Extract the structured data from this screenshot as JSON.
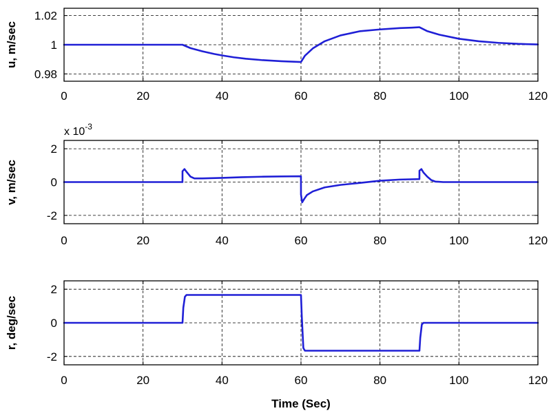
{
  "colors": {
    "series": "#1f1fd6",
    "axes": "#000000",
    "background": "#ffffff"
  },
  "chart_data": [
    {
      "type": "line",
      "title": "",
      "xlabel": "",
      "ylabel": "u, m/sec",
      "multiplier": "",
      "xlim": [
        0,
        120
      ],
      "ylim": [
        0.975,
        1.025
      ],
      "xticks": [
        0,
        20,
        40,
        60,
        80,
        100,
        120
      ],
      "xtick_labels": [
        "0",
        "20",
        "40",
        "60",
        "80",
        "100",
        "120"
      ],
      "yticks": [
        0.98,
        1,
        1.02
      ],
      "ytick_labels": [
        "0.98",
        "1",
        "1.02"
      ],
      "grid": true,
      "series": [
        {
          "x": [
            0,
            30,
            32,
            35,
            38,
            40,
            43,
            46,
            50,
            55,
            59.9,
            60,
            61,
            63,
            66,
            70,
            75,
            80,
            85,
            88,
            89.9,
            90,
            92,
            95,
            100,
            105,
            110,
            115,
            120
          ],
          "values": [
            1.0,
            1.0,
            0.9977,
            0.9955,
            0.9937,
            0.9927,
            0.9914,
            0.9904,
            0.9895,
            0.9887,
            0.9882,
            0.9882,
            0.9925,
            0.9975,
            1.0024,
            1.0064,
            1.0093,
            1.0105,
            1.0114,
            1.0117,
            1.012,
            1.012,
            1.0093,
            1.0069,
            1.0041,
            1.0024,
            1.0013,
            1.0006,
            1.0002
          ]
        }
      ]
    },
    {
      "type": "line",
      "title": "",
      "xlabel": "",
      "ylabel": "v, m/sec",
      "multiplier": "x 10",
      "multiplier_exponent": "-3",
      "xlim": [
        0,
        120
      ],
      "ylim": [
        -2.5,
        2.5
      ],
      "xticks": [
        0,
        20,
        40,
        60,
        80,
        100,
        120
      ],
      "xtick_labels": [
        "0",
        "20",
        "40",
        "60",
        "80",
        "100",
        "120"
      ],
      "yticks": [
        -2,
        0,
        2
      ],
      "ytick_labels": [
        "-2",
        "0",
        "2"
      ],
      "grid": true,
      "series": [
        {
          "x": [
            0,
            29.99,
            30,
            30.5,
            31,
            32,
            33,
            35,
            40,
            45,
            50,
            55,
            59.99,
            60,
            60.3,
            60.8,
            61.5,
            63,
            66,
            70,
            75,
            80,
            85,
            89.99,
            90,
            90.5,
            91,
            92,
            93,
            94,
            96,
            100,
            120
          ],
          "values": [
            0,
            0,
            0.65,
            0.78,
            0.62,
            0.33,
            0.22,
            0.22,
            0.25,
            0.29,
            0.32,
            0.34,
            0.35,
            -0.75,
            -1.22,
            -1.02,
            -0.78,
            -0.56,
            -0.32,
            -0.17,
            -0.05,
            0.08,
            0.15,
            0.18,
            0.68,
            0.78,
            0.58,
            0.32,
            0.12,
            0.03,
            0.0,
            0.0,
            0.0
          ]
        }
      ]
    },
    {
      "type": "line",
      "title": "",
      "xlabel": "Time (Sec)",
      "ylabel": "r, deg/sec",
      "multiplier": "",
      "xlim": [
        0,
        120
      ],
      "ylim": [
        -2.5,
        2.5
      ],
      "xticks": [
        0,
        20,
        40,
        60,
        80,
        100,
        120
      ],
      "xtick_labels": [
        "0",
        "20",
        "40",
        "60",
        "80",
        "100",
        "120"
      ],
      "yticks": [
        -2,
        0,
        2
      ],
      "ytick_labels": [
        "-2",
        "0",
        "2"
      ],
      "grid": true,
      "series": [
        {
          "x": [
            0,
            30,
            30.2,
            30.6,
            31,
            59.9,
            60,
            60.2,
            60.6,
            61,
            89.9,
            90,
            90.2,
            90.6,
            91,
            120
          ],
          "values": [
            0,
            0,
            0.9,
            1.55,
            1.66,
            1.66,
            1.66,
            0.4,
            -1.5,
            -1.66,
            -1.66,
            -1.66,
            -0.9,
            -0.1,
            0,
            0
          ]
        }
      ]
    }
  ]
}
